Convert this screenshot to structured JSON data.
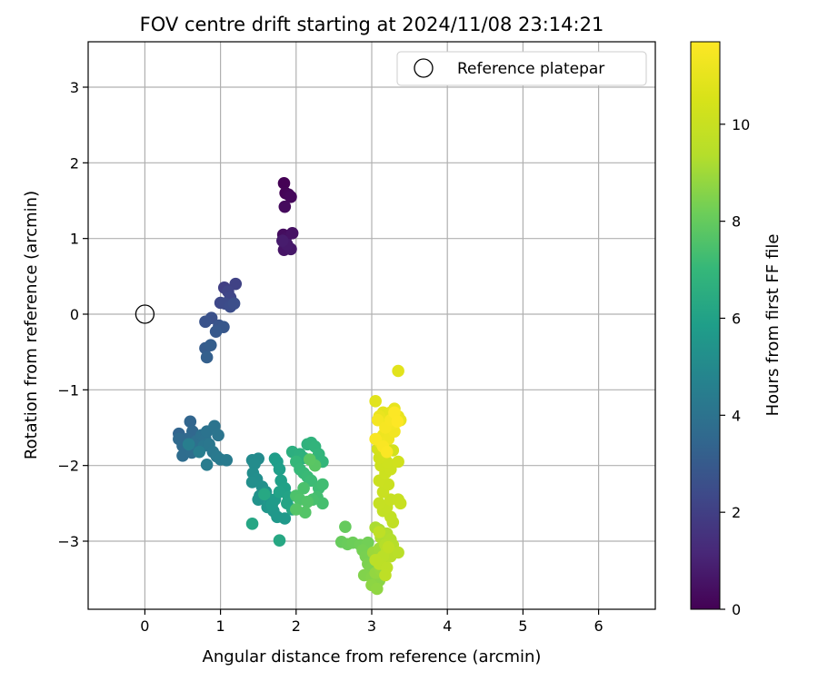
{
  "chart_data": {
    "type": "scatter",
    "title": "FOV centre drift starting at 2024/11/08 23:14:21",
    "xlabel": "Angular distance from reference (arcmin)",
    "ylabel": "Rotation from reference (arcmin)",
    "xlim": [
      -0.75,
      6.75
    ],
    "ylim": [
      -3.9,
      3.6
    ],
    "x_ticks": [
      0,
      1,
      2,
      3,
      4,
      5,
      6
    ],
    "y_ticks": [
      -3,
      -2,
      -1,
      0,
      1,
      2,
      3
    ],
    "x_tick_labels": [
      "0",
      "1",
      "2",
      "3",
      "4",
      "5",
      "6"
    ],
    "y_tick_labels": [
      "−3",
      "−2",
      "−1",
      "0",
      "1",
      "2",
      "3"
    ],
    "grid": true,
    "legend": {
      "placement": "top-right",
      "entries": [
        {
          "label": "Reference platepar",
          "marker": "open-circle"
        }
      ]
    },
    "reference_point": {
      "x": 0,
      "y": 0
    },
    "colorbar": {
      "label": "Hours from first FF file",
      "range": [
        0,
        11.7
      ],
      "ticks": [
        0,
        2,
        4,
        6,
        8,
        10
      ],
      "tick_labels": [
        "0",
        "2",
        "4",
        "6",
        "8",
        "10"
      ],
      "colormap": "viridis"
    },
    "clusters": [
      {
        "c": [
          0.0,
          0.8
        ],
        "points": [
          [
            1.84,
            1.73
          ],
          [
            1.86,
            1.6
          ],
          [
            1.9,
            1.58
          ],
          [
            1.93,
            1.55
          ],
          [
            1.85,
            1.42
          ],
          [
            1.83,
            1.05
          ],
          [
            1.86,
            1.0
          ],
          [
            1.95,
            1.07
          ],
          [
            1.84,
            0.85
          ],
          [
            1.93,
            0.86
          ],
          [
            1.88,
            0.92
          ],
          [
            1.82,
            0.97
          ]
        ]
      },
      {
        "c": [
          2.0,
          3.2
        ],
        "points": [
          [
            1.05,
            0.35
          ],
          [
            1.2,
            0.4
          ],
          [
            1.1,
            0.3
          ],
          [
            1.13,
            0.22
          ],
          [
            1.0,
            0.15
          ],
          [
            1.06,
            0.14
          ],
          [
            1.13,
            0.1
          ],
          [
            1.18,
            0.14
          ],
          [
            0.88,
            -0.05
          ],
          [
            0.8,
            -0.1
          ],
          [
            0.98,
            -0.15
          ],
          [
            1.04,
            -0.17
          ],
          [
            0.94,
            -0.23
          ],
          [
            0.8,
            -0.45
          ],
          [
            0.87,
            -0.41
          ],
          [
            0.82,
            -0.57
          ]
        ]
      },
      {
        "c": [
          3.4,
          4.5
        ],
        "points": [
          [
            0.45,
            -1.58
          ],
          [
            0.6,
            -1.42
          ],
          [
            0.63,
            -1.55
          ],
          [
            0.56,
            -1.65
          ],
          [
            0.45,
            -1.65
          ],
          [
            0.5,
            -1.74
          ],
          [
            0.55,
            -1.8
          ],
          [
            0.5,
            -1.87
          ],
          [
            0.62,
            -1.83
          ],
          [
            0.7,
            -1.76
          ],
          [
            0.68,
            -1.68
          ],
          [
            0.75,
            -1.6
          ],
          [
            0.8,
            -1.65
          ],
          [
            0.82,
            -1.55
          ],
          [
            0.92,
            -1.48
          ],
          [
            0.97,
            -1.6
          ],
          [
            0.78,
            -1.74
          ],
          [
            0.85,
            -1.72
          ],
          [
            0.9,
            -1.82
          ],
          [
            0.95,
            -1.88
          ],
          [
            1.0,
            -1.92
          ],
          [
            1.08,
            -1.93
          ],
          [
            0.82,
            -1.99
          ],
          [
            0.72,
            -1.82
          ],
          [
            0.58,
            -1.72
          ]
        ]
      },
      {
        "c": [
          5.0,
          6.3
        ],
        "points": [
          [
            1.42,
            -1.93
          ],
          [
            1.5,
            -1.91
          ],
          [
            1.45,
            -1.98
          ],
          [
            1.43,
            -2.1
          ],
          [
            1.48,
            -2.18
          ],
          [
            1.42,
            -2.22
          ],
          [
            1.55,
            -2.28
          ],
          [
            1.52,
            -2.4
          ],
          [
            1.5,
            -2.45
          ],
          [
            1.6,
            -2.35
          ],
          [
            1.65,
            -2.45
          ],
          [
            1.62,
            -2.55
          ],
          [
            1.7,
            -2.6
          ],
          [
            1.75,
            -2.68
          ],
          [
            1.85,
            -2.7
          ],
          [
            1.68,
            -2.52
          ],
          [
            1.72,
            -2.45
          ],
          [
            1.72,
            -1.91
          ],
          [
            1.75,
            -1.95
          ],
          [
            1.78,
            -2.05
          ],
          [
            1.8,
            -2.2
          ],
          [
            1.85,
            -2.3
          ],
          [
            1.78,
            -2.35
          ],
          [
            1.9,
            -2.42
          ],
          [
            1.88,
            -2.5
          ],
          [
            1.95,
            -2.58
          ],
          [
            1.42,
            -2.77
          ],
          [
            1.78,
            -2.99
          ],
          [
            1.58,
            -2.38
          ]
        ]
      },
      {
        "c": [
          6.6,
          7.8
        ],
        "points": [
          [
            1.95,
            -1.82
          ],
          [
            2.05,
            -1.85
          ],
          [
            2.1,
            -1.9
          ],
          [
            2.15,
            -1.72
          ],
          [
            2.2,
            -1.7
          ],
          [
            2.25,
            -1.75
          ],
          [
            2.3,
            -1.85
          ],
          [
            2.35,
            -1.95
          ],
          [
            2.0,
            -1.95
          ],
          [
            2.05,
            -2.05
          ],
          [
            2.1,
            -2.1
          ],
          [
            2.15,
            -2.15
          ],
          [
            2.2,
            -2.2
          ],
          [
            2.3,
            -2.3
          ],
          [
            2.35,
            -2.25
          ],
          [
            2.28,
            -2.42
          ],
          [
            2.35,
            -2.5
          ],
          [
            2.22,
            -2.45
          ],
          [
            2.1,
            -2.3
          ],
          [
            2.0,
            -2.4
          ],
          [
            2.05,
            -2.45
          ],
          [
            2.15,
            -2.48
          ],
          [
            2.12,
            -2.62
          ],
          [
            2.0,
            -2.58
          ],
          [
            2.25,
            -2.0
          ],
          [
            2.18,
            -1.92
          ]
        ]
      },
      {
        "c": [
          8.0,
          9.0
        ],
        "points": [
          [
            2.65,
            -2.81
          ],
          [
            2.6,
            -3.01
          ],
          [
            2.68,
            -3.04
          ],
          [
            2.75,
            -3.02
          ],
          [
            2.85,
            -3.05
          ],
          [
            2.95,
            -3.02
          ],
          [
            2.88,
            -3.12
          ],
          [
            2.92,
            -3.2
          ],
          [
            2.95,
            -3.3
          ],
          [
            2.98,
            -3.37
          ],
          [
            2.9,
            -3.45
          ],
          [
            3.0,
            -3.48
          ],
          [
            3.05,
            -3.55
          ],
          [
            3.1,
            -3.52
          ],
          [
            3.0,
            -3.58
          ],
          [
            3.07,
            -3.63
          ],
          [
            3.05,
            -3.42
          ],
          [
            3.12,
            -3.38
          ],
          [
            3.15,
            -3.25
          ],
          [
            3.02,
            -3.15
          ],
          [
            3.1,
            -3.1
          ]
        ]
      },
      {
        "c": [
          9.2,
          10.4
        ],
        "points": [
          [
            3.05,
            -2.82
          ],
          [
            3.1,
            -2.85
          ],
          [
            3.12,
            -2.95
          ],
          [
            3.2,
            -2.9
          ],
          [
            3.25,
            -2.98
          ],
          [
            3.18,
            -3.05
          ],
          [
            3.28,
            -3.05
          ],
          [
            3.2,
            -3.12
          ],
          [
            3.25,
            -3.2
          ],
          [
            3.3,
            -3.15
          ],
          [
            3.35,
            -3.15
          ],
          [
            3.15,
            -3.2
          ],
          [
            3.05,
            -3.25
          ],
          [
            3.1,
            -3.3
          ],
          [
            3.2,
            -3.35
          ],
          [
            3.18,
            -3.45
          ],
          [
            3.1,
            -2.88
          ],
          [
            3.22,
            -3.08
          ],
          [
            3.28,
            -2.75
          ],
          [
            3.25,
            -2.68
          ],
          [
            3.15,
            -2.6
          ],
          [
            3.2,
            -2.55
          ],
          [
            3.1,
            -2.5
          ],
          [
            3.25,
            -2.45
          ],
          [
            3.35,
            -2.45
          ],
          [
            3.38,
            -2.5
          ],
          [
            3.15,
            -2.35
          ],
          [
            3.22,
            -2.25
          ],
          [
            3.1,
            -2.2
          ],
          [
            3.18,
            -2.1
          ],
          [
            3.25,
            -2.05
          ],
          [
            3.12,
            -2.0
          ],
          [
            3.2,
            -1.95
          ],
          [
            3.1,
            -1.9
          ],
          [
            3.35,
            -1.95
          ],
          [
            3.15,
            -1.85
          ],
          [
            3.28,
            -1.8
          ],
          [
            3.08,
            -1.78
          ],
          [
            3.18,
            -1.72
          ]
        ]
      },
      {
        "c": [
          10.8,
          11.7
        ],
        "points": [
          [
            3.05,
            -1.15
          ],
          [
            3.35,
            -0.75
          ],
          [
            3.15,
            -1.3
          ],
          [
            3.2,
            -1.35
          ],
          [
            3.25,
            -1.3
          ],
          [
            3.3,
            -1.25
          ],
          [
            3.35,
            -1.35
          ],
          [
            3.38,
            -1.4
          ],
          [
            3.1,
            -1.35
          ],
          [
            3.2,
            -1.45
          ],
          [
            3.25,
            -1.55
          ],
          [
            3.15,
            -1.6
          ],
          [
            3.22,
            -1.65
          ],
          [
            3.12,
            -1.7
          ],
          [
            3.3,
            -1.55
          ],
          [
            3.28,
            -1.45
          ],
          [
            3.08,
            -1.4
          ],
          [
            3.18,
            -1.5
          ],
          [
            3.25,
            -1.4
          ],
          [
            3.05,
            -1.65
          ],
          [
            3.15,
            -1.75
          ],
          [
            3.2,
            -1.82
          ],
          [
            3.3,
            -1.3
          ],
          [
            3.34,
            -1.42
          ]
        ]
      }
    ]
  }
}
